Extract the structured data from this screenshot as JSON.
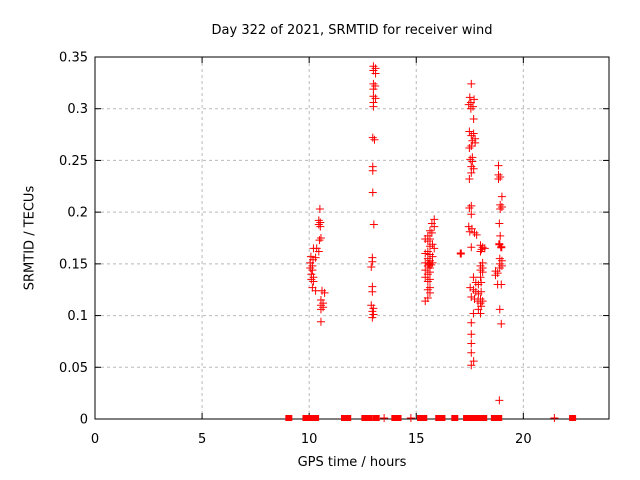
{
  "colors": {
    "background": "#ffffff",
    "axis": "#000000",
    "grid": "#b9b9b9",
    "marker": "#ff0000",
    "text": "#000000"
  },
  "chart_data": {
    "type": "scatter",
    "title": "Day 322 of 2021, SRMTID for receiver wind",
    "xlabel": "GPS time / hours",
    "ylabel": "SRMTID / TECUs",
    "xlim": [
      0,
      24
    ],
    "ylim": [
      0,
      0.35
    ],
    "grid": true,
    "legend": "none",
    "marker": {
      "shape": "plus",
      "color": "#ff0000",
      "size": 4
    },
    "xticks": {
      "values": [
        0,
        5,
        10,
        15,
        20
      ],
      "labels": [
        "0",
        "5",
        "10",
        "15",
        "20"
      ]
    },
    "yticks": {
      "values": [
        0,
        0.05,
        0.1,
        0.15,
        0.2,
        0.25,
        0.3,
        0.35
      ],
      "labels": [
        "0",
        "0.05",
        "0.1",
        "0.15",
        "0.2",
        "0.25",
        "0.3",
        "0.35"
      ]
    },
    "series": [
      {
        "name": "SRMTID",
        "points": [
          [
            10.5,
            0.203
          ],
          [
            10.45,
            0.192
          ],
          [
            10.52,
            0.19
          ],
          [
            10.45,
            0.188
          ],
          [
            10.52,
            0.186
          ],
          [
            10.55,
            0.175
          ],
          [
            10.48,
            0.173
          ],
          [
            10.2,
            0.165
          ],
          [
            10.35,
            0.165
          ],
          [
            10.45,
            0.162
          ],
          [
            10.08,
            0.157
          ],
          [
            10.18,
            0.154
          ],
          [
            10.3,
            0.156
          ],
          [
            10.05,
            0.151
          ],
          [
            10.15,
            0.148
          ],
          [
            10.05,
            0.146
          ],
          [
            10.15,
            0.144
          ],
          [
            10.1,
            0.14
          ],
          [
            10.2,
            0.137
          ],
          [
            10.1,
            0.135
          ],
          [
            10.2,
            0.133
          ],
          [
            10.15,
            0.127
          ],
          [
            10.3,
            0.124
          ],
          [
            10.6,
            0.124
          ],
          [
            10.72,
            0.122
          ],
          [
            10.55,
            0.115
          ],
          [
            10.65,
            0.112
          ],
          [
            10.55,
            0.11
          ],
          [
            10.65,
            0.108
          ],
          [
            10.55,
            0.106
          ],
          [
            10.55,
            0.094
          ],
          [
            13.0,
            0.341
          ],
          [
            13.1,
            0.339
          ],
          [
            13.0,
            0.337
          ],
          [
            13.1,
            0.334
          ],
          [
            13.0,
            0.324
          ],
          [
            13.08,
            0.322
          ],
          [
            13.0,
            0.319
          ],
          [
            13.0,
            0.312
          ],
          [
            13.1,
            0.31
          ],
          [
            13.0,
            0.306
          ],
          [
            13.0,
            0.302
          ],
          [
            12.97,
            0.272
          ],
          [
            13.05,
            0.27
          ],
          [
            12.97,
            0.244
          ],
          [
            12.97,
            0.24
          ],
          [
            12.97,
            0.219
          ],
          [
            13.02,
            0.188
          ],
          [
            12.95,
            0.156
          ],
          [
            12.95,
            0.152
          ],
          [
            12.9,
            0.147
          ],
          [
            12.95,
            0.128
          ],
          [
            12.95,
            0.123
          ],
          [
            12.9,
            0.11
          ],
          [
            13.0,
            0.107
          ],
          [
            12.95,
            0.104
          ],
          [
            13.0,
            0.101
          ],
          [
            12.95,
            0.098
          ],
          [
            15.84,
            0.193
          ],
          [
            15.73,
            0.189
          ],
          [
            15.84,
            0.186
          ],
          [
            15.64,
            0.182
          ],
          [
            15.73,
            0.18
          ],
          [
            15.54,
            0.177
          ],
          [
            15.42,
            0.174
          ],
          [
            15.64,
            0.174
          ],
          [
            15.54,
            0.172
          ],
          [
            15.76,
            0.169
          ],
          [
            15.64,
            0.167
          ],
          [
            15.84,
            0.165
          ],
          [
            15.54,
            0.162
          ],
          [
            15.42,
            0.16
          ],
          [
            15.64,
            0.159
          ],
          [
            15.76,
            0.157
          ],
          [
            15.54,
            0.155
          ],
          [
            15.64,
            0.153
          ],
          [
            15.42,
            0.151
          ],
          [
            15.76,
            0.151
          ],
          [
            15.6,
            0.15,
            1
          ],
          [
            15.7,
            0.149
          ],
          [
            15.54,
            0.148
          ],
          [
            15.64,
            0.146
          ],
          [
            15.42,
            0.144
          ],
          [
            15.64,
            0.142
          ],
          [
            15.54,
            0.14
          ],
          [
            15.42,
            0.137
          ],
          [
            15.64,
            0.135
          ],
          [
            15.54,
            0.133
          ],
          [
            15.64,
            0.127
          ],
          [
            15.54,
            0.125
          ],
          [
            15.64,
            0.122
          ],
          [
            15.54,
            0.117
          ],
          [
            15.42,
            0.114
          ],
          [
            17.08,
            0.16,
            1
          ],
          [
            17.57,
            0.324
          ],
          [
            17.5,
            0.311
          ],
          [
            17.7,
            0.309
          ],
          [
            17.55,
            0.306
          ],
          [
            17.45,
            0.304
          ],
          [
            17.65,
            0.302
          ],
          [
            17.55,
            0.3
          ],
          [
            17.68,
            0.29
          ],
          [
            17.48,
            0.278
          ],
          [
            17.68,
            0.276
          ],
          [
            17.57,
            0.274
          ],
          [
            17.75,
            0.271
          ],
          [
            17.62,
            0.269
          ],
          [
            17.75,
            0.267
          ],
          [
            17.57,
            0.264
          ],
          [
            17.48,
            0.262
          ],
          [
            17.62,
            0.253
          ],
          [
            17.52,
            0.251
          ],
          [
            17.62,
            0.249
          ],
          [
            17.57,
            0.244
          ],
          [
            17.68,
            0.242
          ],
          [
            17.57,
            0.238
          ],
          [
            17.48,
            0.232
          ],
          [
            17.57,
            0.206
          ],
          [
            17.48,
            0.204
          ],
          [
            17.57,
            0.198
          ],
          [
            17.45,
            0.186
          ],
          [
            17.6,
            0.184
          ],
          [
            17.5,
            0.181
          ],
          [
            17.72,
            0.18
          ],
          [
            17.82,
            0.178
          ],
          [
            17.57,
            0.166
          ],
          [
            18.0,
            0.168
          ],
          [
            18.1,
            0.166
          ],
          [
            18.05,
            0.164
          ],
          [
            18.2,
            0.165
          ],
          [
            18.0,
            0.162
          ],
          [
            18.1,
            0.151
          ],
          [
            18.0,
            0.148
          ],
          [
            18.1,
            0.146
          ],
          [
            18.0,
            0.144
          ],
          [
            18.1,
            0.142
          ],
          [
            17.67,
            0.137
          ],
          [
            18.0,
            0.137
          ],
          [
            17.78,
            0.132
          ],
          [
            17.9,
            0.13
          ],
          [
            18.03,
            0.132
          ],
          [
            17.52,
            0.127
          ],
          [
            17.67,
            0.125
          ],
          [
            17.78,
            0.123
          ],
          [
            17.9,
            0.121
          ],
          [
            18.03,
            0.123
          ],
          [
            17.57,
            0.118
          ],
          [
            17.72,
            0.116
          ],
          [
            17.88,
            0.114
          ],
          [
            18.0,
            0.116
          ],
          [
            18.1,
            0.114
          ],
          [
            18.0,
            0.112
          ],
          [
            18.03,
            0.109
          ],
          [
            17.9,
            0.106
          ],
          [
            17.67,
            0.102
          ],
          [
            18.0,
            0.102
          ],
          [
            17.57,
            0.093
          ],
          [
            17.57,
            0.082
          ],
          [
            17.57,
            0.073
          ],
          [
            17.57,
            0.064
          ],
          [
            17.68,
            0.056
          ],
          [
            17.57,
            0.052
          ],
          [
            18.84,
            0.245
          ],
          [
            18.84,
            0.236
          ],
          [
            18.92,
            0.234
          ],
          [
            18.84,
            0.232
          ],
          [
            19.0,
            0.215
          ],
          [
            18.92,
            0.207
          ],
          [
            19.0,
            0.205
          ],
          [
            18.92,
            0.203
          ],
          [
            18.88,
            0.189
          ],
          [
            18.92,
            0.177
          ],
          [
            18.88,
            0.169,
            1
          ],
          [
            18.97,
            0.166,
            1
          ],
          [
            18.9,
            0.155
          ],
          [
            19.0,
            0.153
          ],
          [
            18.9,
            0.15
          ],
          [
            19.0,
            0.148
          ],
          [
            18.9,
            0.146
          ],
          [
            18.7,
            0.143
          ],
          [
            18.8,
            0.141
          ],
          [
            18.7,
            0.139
          ],
          [
            18.8,
            0.13
          ],
          [
            18.97,
            0.13
          ],
          [
            18.9,
            0.106
          ],
          [
            18.97,
            0.092
          ],
          [
            18.88,
            0.018
          ]
        ],
        "zero_markers": {
          "square_hours": [
            9.05,
            9.85,
            10.05,
            10.3,
            11.65,
            11.8,
            12.6,
            12.8,
            13.13,
            14.0,
            14.15,
            15.2,
            15.35,
            16.05,
            16.2,
            16.8,
            17.35,
            17.65,
            17.9,
            18.15,
            18.65,
            18.85,
            22.3
          ],
          "plus_hours": [
            13.5,
            14.75,
            21.45
          ]
        }
      }
    ]
  }
}
